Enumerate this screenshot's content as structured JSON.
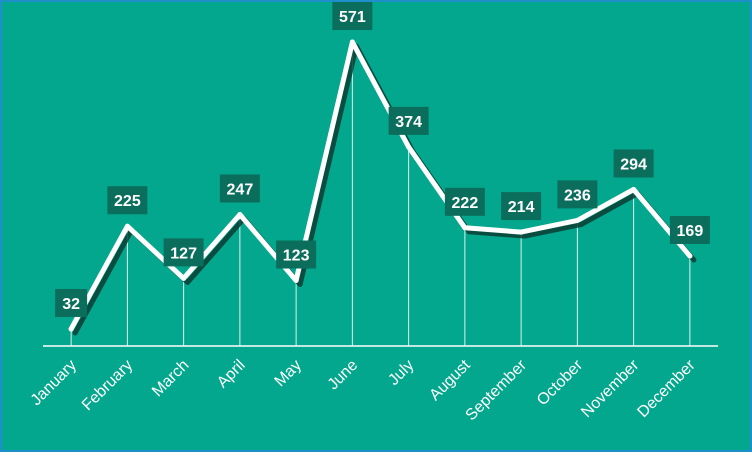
{
  "colors": {
    "background": "#03A78D",
    "frame": "#1E8FCB",
    "line": "#FFFFFF",
    "shadow": "#0B3D34",
    "label_box": "#0B6E5C",
    "label_text": "#FFFFFF",
    "axis": "#FFFFFF",
    "dropline": "#FFFFFF"
  },
  "chart_data": {
    "type": "line",
    "title": "",
    "xlabel": "",
    "ylabel": "",
    "categories": [
      "January",
      "February",
      "March",
      "April",
      "May",
      "June",
      "July",
      "August",
      "September",
      "October",
      "November",
      "December"
    ],
    "series": [
      {
        "values": [
          32,
          225,
          127,
          247,
          123,
          571,
          374,
          222,
          214,
          236,
          294,
          169
        ]
      }
    ],
    "ylim": [
      0,
      600
    ],
    "grid": false,
    "legend": "none",
    "data_labels": true,
    "drop_lines": true,
    "x_tick_rotation": -45
  }
}
